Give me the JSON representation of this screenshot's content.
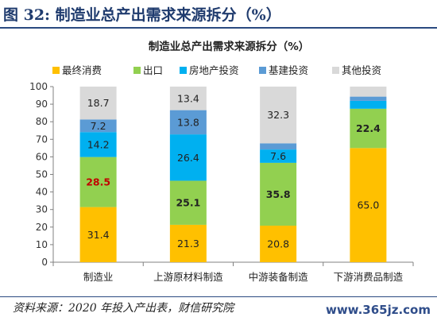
{
  "figure_title": "图 32: 制造业总产出需求来源拆分（%）",
  "source_note": "资料来源：2020 年投入产出表，财信研究院",
  "watermark": "www.365jz.com",
  "chart_data": {
    "type": "bar",
    "stacked": true,
    "title": "制造业总产出需求来源拆分（%）",
    "categories": [
      "制造业",
      "上游原材料制造",
      "中游装备制造",
      "下游消费品制造"
    ],
    "series": [
      {
        "name": "最终消费",
        "color": "#ffc000",
        "values": [
          31.4,
          21.3,
          20.8,
          65.0
        ],
        "labels": [
          "31.4",
          "21.3",
          "20.8",
          "65.0"
        ]
      },
      {
        "name": "出口",
        "color": "#92d050",
        "values": [
          28.5,
          25.1,
          35.8,
          22.4
        ],
        "labels": [
          "28.5",
          "25.1",
          "35.8",
          "22.4"
        ]
      },
      {
        "name": "房地产投资",
        "color": "#00b0f0",
        "values": [
          14.2,
          26.4,
          7.6,
          4.5
        ],
        "labels": [
          "14.2",
          "26.4",
          "7.6",
          ""
        ]
      },
      {
        "name": "基建投资",
        "color": "#5b9bd5",
        "values": [
          7.2,
          13.8,
          3.5,
          2.4
        ],
        "labels": [
          "7.2",
          "13.8",
          "",
          ""
        ]
      },
      {
        "name": "其他投资",
        "color": "#d9d9d9",
        "values": [
          18.7,
          13.4,
          32.3,
          5.7
        ],
        "labels": [
          "18.7",
          "13.4",
          "32.3",
          ""
        ]
      }
    ],
    "label_styles": {
      "bold_red": [
        [
          1,
          0
        ]
      ],
      "bold": [
        [
          1,
          1
        ],
        [
          1,
          2
        ],
        [
          1,
          3
        ]
      ]
    },
    "label_color_red": "#c00000",
    "ylim": [
      0,
      100
    ],
    "yticks": [
      0,
      10,
      20,
      30,
      40,
      50,
      60,
      70,
      80,
      90,
      100
    ],
    "legend_position": "top",
    "grid": false
  }
}
